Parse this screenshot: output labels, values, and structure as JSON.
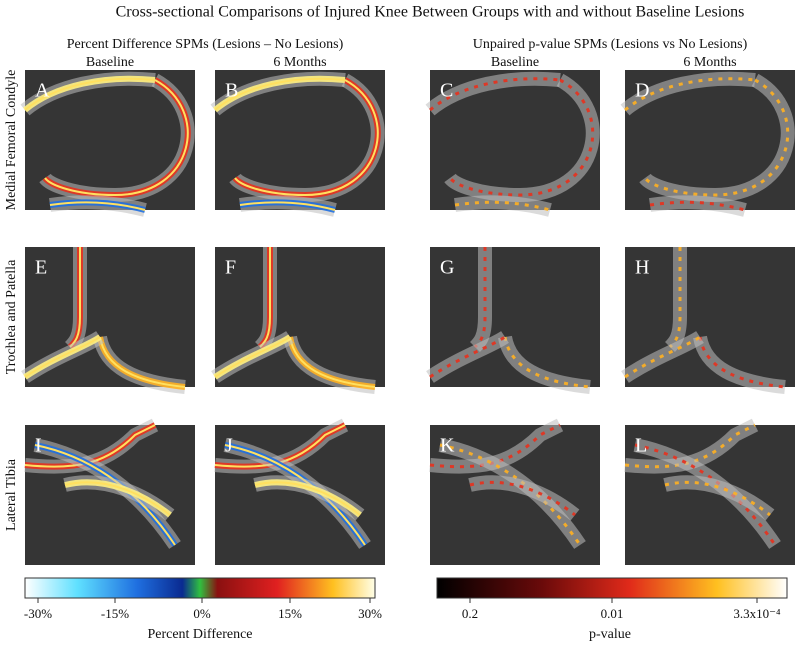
{
  "title": "Cross-sectional Comparisons of Injured Knee Between Groups with and without Baseline Lesions",
  "groups": [
    {
      "title": "Percent Difference SPMs (Lesions – No Lesions)",
      "columns": [
        "Baseline",
        "6 Months"
      ]
    },
    {
      "title": "Unpaired p-value SPMs (Lesions vs No Lesions)",
      "columns": [
        "Baseline",
        "6 Months"
      ]
    }
  ],
  "rows": [
    {
      "label": "Medial Femoral Condyle",
      "panels": [
        "A",
        "B",
        "C",
        "D"
      ]
    },
    {
      "label": "Trochlea and Patella",
      "panels": [
        "E",
        "F",
        "G",
        "H"
      ]
    },
    {
      "label": "Lateral Tibia",
      "panels": [
        "I",
        "J",
        "K",
        "L"
      ]
    }
  ],
  "colorbars": [
    {
      "ticks": [
        "-30%",
        "-15%",
        "0%",
        "15%",
        "30%"
      ],
      "label": "Percent Difference"
    },
    {
      "ticks": [
        "0.2",
        "0.01",
        "3.3x10⁻⁴"
      ],
      "label": "p-value"
    }
  ]
}
